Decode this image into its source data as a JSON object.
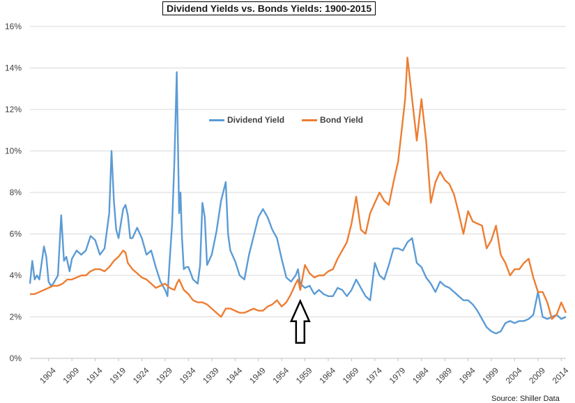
{
  "chart_data": {
    "type": "line",
    "title": "Dividend Yields vs. Bonds Yields: 1900-2015",
    "xlabel": "",
    "ylabel": "",
    "xlim": [
      1900,
      2015
    ],
    "ylim": [
      0,
      16
    ],
    "y_ticks": [
      "0%",
      "2%",
      "4%",
      "6%",
      "8%",
      "10%",
      "12%",
      "14%",
      "16%"
    ],
    "x_ticks": [
      "1904",
      "1909",
      "1914",
      "1919",
      "1924",
      "1929",
      "1934",
      "1939",
      "1944",
      "1949",
      "1954",
      "1959",
      "1964",
      "1969",
      "1974",
      "1979",
      "1984",
      "1989",
      "1994",
      "1999",
      "2004",
      "2009",
      "2014"
    ],
    "grid": true,
    "legend_position": "top-center",
    "series": [
      {
        "name": "Dividend Yield",
        "color": "#5b9bd5",
        "x": [
          1900,
          1900.5,
          1901,
          1901.5,
          1902,
          1903,
          1903.5,
          1904,
          1904.5,
          1905,
          1906,
          1906.7,
          1907.3,
          1907.8,
          1908.5,
          1909,
          1910,
          1911,
          1912,
          1913,
          1914,
          1915,
          1916,
          1917,
          1917.5,
          1918,
          1918.5,
          1919,
          1920,
          1920.5,
          1921,
          1921.5,
          1922,
          1923,
          1924,
          1925,
          1926,
          1927,
          1928,
          1929,
          1929.5,
          1930,
          1930.5,
          1931,
          1931.5,
          1932,
          1932.3,
          1932.6,
          1933,
          1933.5,
          1934,
          1935,
          1936,
          1936.5,
          1937,
          1937.5,
          1938,
          1939,
          1940,
          1941,
          1942,
          1942.5,
          1943,
          1944,
          1945,
          1946,
          1947,
          1948,
          1949,
          1950,
          1951,
          1952,
          1953,
          1954,
          1955,
          1956,
          1957,
          1957.5,
          1958,
          1959,
          1960,
          1961,
          1962,
          1963,
          1964,
          1965,
          1966,
          1967,
          1968,
          1969,
          1970,
          1971,
          1972,
          1973,
          1974,
          1975,
          1976,
          1977,
          1978,
          1979,
          1980,
          1981,
          1982,
          1983,
          1984,
          1985,
          1986,
          1987,
          1988,
          1989,
          1990,
          1991,
          1992,
          1993,
          1994,
          1995,
          1996,
          1997,
          1998,
          1999,
          2000,
          2001,
          2002,
          2003,
          2004,
          2005,
          2006,
          2007,
          2008,
          2009,
          2010,
          2011,
          2012,
          2013,
          2014,
          2015
        ],
        "values": [
          3.6,
          4.7,
          3.8,
          4.0,
          3.8,
          5.4,
          4.9,
          3.7,
          3.5,
          3.6,
          4.0,
          6.9,
          4.7,
          4.9,
          4.2,
          4.8,
          5.2,
          5.0,
          5.2,
          5.9,
          5.7,
          5.0,
          5.3,
          7.0,
          10.0,
          7.6,
          6.2,
          5.8,
          7.2,
          7.4,
          6.9,
          5.8,
          5.8,
          6.3,
          5.8,
          5.0,
          5.2,
          4.4,
          3.7,
          3.3,
          3.0,
          4.8,
          6.5,
          9.6,
          13.8,
          7.0,
          8.0,
          5.9,
          4.3,
          4.4,
          4.4,
          3.8,
          3.6,
          4.5,
          7.5,
          6.8,
          4.5,
          5.0,
          6.1,
          7.6,
          8.5,
          6.0,
          5.2,
          4.7,
          4.0,
          3.8,
          5.0,
          5.9,
          6.8,
          7.2,
          6.8,
          6.2,
          5.8,
          4.8,
          3.9,
          3.7,
          4.0,
          4.3,
          3.6,
          3.4,
          3.5,
          3.1,
          3.3,
          3.1,
          3.0,
          3.0,
          3.4,
          3.3,
          3.0,
          3.3,
          3.8,
          3.4,
          3.0,
          2.8,
          4.6,
          4.0,
          3.8,
          4.5,
          5.3,
          5.3,
          5.2,
          5.6,
          5.8,
          4.6,
          4.4,
          3.9,
          3.6,
          3.2,
          3.7,
          3.5,
          3.4,
          3.2,
          3.0,
          2.8,
          2.8,
          2.6,
          2.3,
          1.9,
          1.5,
          1.3,
          1.2,
          1.3,
          1.7,
          1.8,
          1.7,
          1.8,
          1.8,
          1.9,
          2.1,
          3.2,
          2.0,
          1.9,
          2.0,
          2.1,
          1.9,
          2.0
        ]
      },
      {
        "name": "Bond Yield",
        "color": "#ed7d31",
        "x": [
          1900,
          1901,
          1902,
          1903,
          1904,
          1905,
          1906,
          1907,
          1908,
          1909,
          1910,
          1911,
          1912,
          1913,
          1914,
          1915,
          1916,
          1917,
          1918,
          1919,
          1920,
          1920.5,
          1921,
          1922,
          1923,
          1924,
          1925,
          1926,
          1927,
          1928,
          1929,
          1930,
          1931,
          1931.5,
          1932,
          1933,
          1934,
          1935,
          1936,
          1937,
          1938,
          1939,
          1940,
          1941,
          1942,
          1943,
          1944,
          1945,
          1946,
          1947,
          1948,
          1949,
          1950,
          1951,
          1952,
          1953,
          1954,
          1955,
          1956,
          1957,
          1957.5,
          1958,
          1959,
          1960,
          1961,
          1962,
          1963,
          1964,
          1965,
          1966,
          1967,
          1968,
          1969,
          1970,
          1971,
          1972,
          1973,
          1974,
          1975,
          1976,
          1977,
          1978,
          1979,
          1980,
          1980.5,
          1981,
          1981.5,
          1982,
          1983,
          1984,
          1985,
          1986,
          1987,
          1988,
          1989,
          1990,
          1991,
          1992,
          1993,
          1994,
          1995,
          1996,
          1997,
          1998,
          1999,
          2000,
          2001,
          2002,
          2003,
          2004,
          2005,
          2006,
          2007,
          2008,
          2009,
          2010,
          2011,
          2012,
          2013,
          2014,
          2015
        ],
        "values": [
          3.1,
          3.1,
          3.2,
          3.3,
          3.4,
          3.5,
          3.5,
          3.6,
          3.8,
          3.8,
          3.9,
          4.0,
          4.0,
          4.2,
          4.3,
          4.3,
          4.2,
          4.4,
          4.7,
          4.9,
          5.2,
          5.1,
          4.6,
          4.3,
          4.1,
          3.9,
          3.8,
          3.6,
          3.4,
          3.5,
          3.6,
          3.4,
          3.3,
          3.6,
          3.8,
          3.3,
          3.1,
          2.8,
          2.7,
          2.7,
          2.6,
          2.4,
          2.2,
          2.0,
          2.4,
          2.4,
          2.3,
          2.2,
          2.2,
          2.3,
          2.4,
          2.3,
          2.3,
          2.5,
          2.6,
          2.8,
          2.5,
          2.7,
          3.1,
          3.6,
          3.8,
          3.3,
          4.5,
          4.1,
          3.9,
          4.0,
          4.0,
          4.2,
          4.3,
          4.8,
          5.2,
          5.6,
          6.5,
          7.8,
          6.2,
          6.0,
          7.0,
          7.5,
          8.0,
          7.6,
          7.4,
          8.5,
          9.5,
          11.5,
          12.5,
          14.5,
          13.5,
          12.5,
          10.5,
          12.5,
          10.5,
          7.5,
          8.5,
          9.0,
          8.6,
          8.4,
          7.9,
          7.0,
          6.0,
          7.1,
          6.6,
          6.5,
          6.4,
          5.3,
          5.7,
          6.4,
          5.0,
          4.6,
          4.0,
          4.3,
          4.3,
          4.6,
          4.8,
          3.9,
          3.2,
          3.2,
          2.7,
          1.9,
          2.1,
          2.7,
          2.2
        ]
      }
    ]
  },
  "legend": [
    {
      "label": "Dividend Yield",
      "color": "#5b9bd5"
    },
    {
      "label": "Bond Yield",
      "color": "#ed7d31"
    }
  ],
  "annotation": {
    "label": "arrow-pointing-1958",
    "x": 1958,
    "y": 2.9
  },
  "source_text": "Source: Shiller Data"
}
